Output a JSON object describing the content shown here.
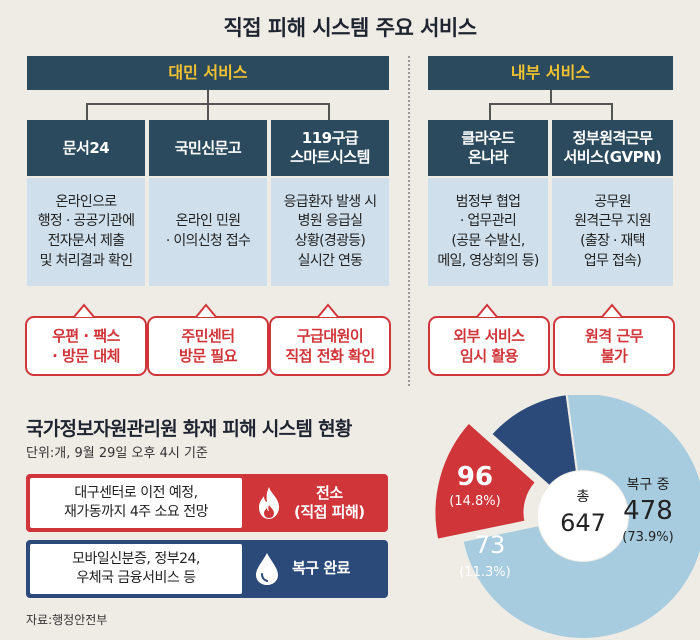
{
  "title": "직접 피해 시스템 주요 서비스",
  "categories": {
    "civil": "대민 서비스",
    "internal": "내부 서비스"
  },
  "services": [
    {
      "name": "문서24",
      "desc": "온라인으로\n행정 · 공공기관에\n전자문서 제출\n및 처리결과 확인",
      "issue": "우편 · 팩스\n· 방문 대체"
    },
    {
      "name": "국민신문고",
      "desc": "온라인 민원\n· 이의신청 접수",
      "issue": "주민센터\n방문 필요"
    },
    {
      "name": "119구급\n스마트시스템",
      "desc": "응급환자 발생 시\n병원 응급실\n상황(경광등)\n실시간 연동",
      "issue": "구급대원이\n직접 전화 확인"
    },
    {
      "name": "클라우드\n온나라",
      "desc": "범정부 협업\n· 업무관리\n(공문 수발신,\n메일, 영상회의 등)",
      "issue": "외부 서비스\n임시 활용"
    },
    {
      "name": "정부원격근무\n서비스(GVPN)",
      "desc": "공무원\n원격근무 지원\n(출장 · 재택\n업무 접속)",
      "issue": "원격 근무\n불가"
    }
  ],
  "status": {
    "title": "국가정보자원관리원 화재 피해 시스템 현황",
    "unit": "단위:개, 9월 29일 오후 4시 기준",
    "source": "자료:행정안전부",
    "items": [
      {
        "desc": "대구센터로 이전 예정,\n재가동까지 4주 소요 전망",
        "label": "전소\n(직접 피해)",
        "icon": "fire-icon",
        "color": "#d0353a"
      },
      {
        "desc": "모바일신분증, 정부24,\n우체국 금융서비스 등",
        "label": "복구 완료",
        "icon": "water-drop-icon",
        "color": "#2b4a7a"
      }
    ]
  },
  "chart_data": {
    "type": "pie",
    "total_label": "총",
    "total": 647,
    "slices": [
      {
        "name": "복구 중",
        "value": 478,
        "pct": "(73.9%)",
        "color": "#a8ccdf"
      },
      {
        "name": "",
        "value": 96,
        "pct": "(14.8%)",
        "color": "#d0353a"
      },
      {
        "name": "",
        "value": 73,
        "pct": "(11.3%)",
        "color": "#2b4a7a"
      }
    ]
  }
}
